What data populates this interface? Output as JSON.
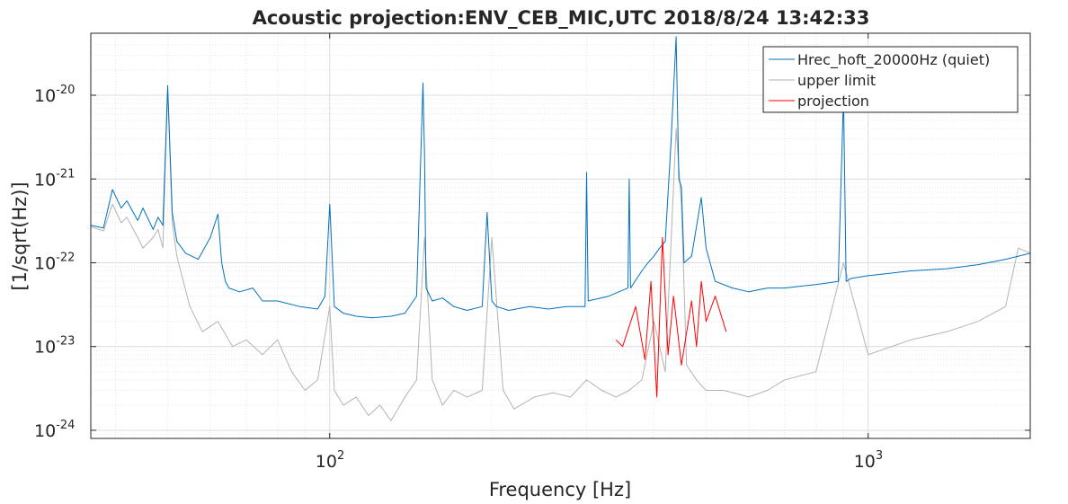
{
  "chart_data": {
    "type": "line",
    "title": "Acoustic projection:ENV_CEB_MIC,UTC 2018/8/24 13:42:33",
    "xlabel": "Frequency [Hz]",
    "ylabel": "[1/sqrt(Hz)]",
    "xscale": "log",
    "yscale": "log",
    "xlim": [
      36,
      2000
    ],
    "ylim": [
      8e-25,
      5.5e-20
    ],
    "grid": true,
    "minor_grid": true,
    "legend_position": "top-right",
    "x_ticks": [
      {
        "value": 100,
        "base": "10",
        "exp": "2"
      },
      {
        "value": 1000,
        "base": "10",
        "exp": "3"
      }
    ],
    "y_ticks": [
      {
        "value": 1e-24,
        "base": "10",
        "exp": "-24"
      },
      {
        "value": 1e-23,
        "base": "10",
        "exp": "-23"
      },
      {
        "value": 1e-22,
        "base": "10",
        "exp": "-22"
      },
      {
        "value": 1e-21,
        "base": "10",
        "exp": "-21"
      },
      {
        "value": 1e-20,
        "base": "10",
        "exp": "-20"
      }
    ],
    "series": [
      {
        "name": "Hrec_hoft_20000Hz (quiet)",
        "color": "#0072bd",
        "x": [
          36,
          38,
          39.5,
          41,
          42,
          44,
          45,
          47,
          48,
          49,
          50,
          51,
          52,
          54,
          57,
          60,
          62,
          63,
          64,
          65,
          68,
          72,
          75,
          80,
          88,
          95,
          98,
          100,
          102,
          106,
          112,
          120,
          130,
          138,
          145,
          149,
          150,
          151,
          155,
          162,
          170,
          180,
          192,
          196,
          200,
          204,
          215,
          235,
          255,
          275,
          298,
          300,
          302,
          330,
          358,
          360,
          362,
          380,
          390,
          400,
          410,
          420,
          430,
          440,
          445,
          450,
          455,
          470,
          490,
          500,
          520,
          560,
          600,
          650,
          700,
          800,
          880,
          900,
          910,
          930,
          1000,
          1100,
          1200,
          1400,
          1600,
          1800,
          1950,
          2000
        ],
        "y": [
          2.8e-22,
          2.6e-22,
          7.5e-22,
          4.5e-22,
          5.5e-22,
          3.2e-22,
          4.5e-22,
          2.5e-22,
          3.5e-22,
          2.8e-22,
          1.3e-20,
          4e-22,
          1.8e-22,
          1.3e-22,
          1.1e-22,
          2e-22,
          3.8e-22,
          1e-22,
          6e-23,
          5e-23,
          4.5e-23,
          5e-23,
          3.5e-23,
          3.5e-23,
          3e-23,
          2.8e-23,
          4e-23,
          5e-22,
          3e-23,
          2.5e-23,
          2.3e-23,
          2.2e-23,
          2.3e-23,
          2.5e-23,
          4e-23,
          1.4e-20,
          2e-21,
          5e-23,
          3.5e-23,
          3.8e-23,
          3e-23,
          2.7e-23,
          3e-23,
          4e-22,
          3.5e-23,
          3e-23,
          2.7e-23,
          3e-23,
          2.8e-23,
          3e-23,
          3e-23,
          1.2e-21,
          3.5e-23,
          4e-23,
          5e-23,
          1e-21,
          5e-23,
          8e-23,
          1e-22,
          1.2e-22,
          1.5e-22,
          1.8e-22,
          2.5e-21,
          5e-20,
          1e-21,
          8e-22,
          1e-22,
          1.2e-22,
          6e-22,
          1.5e-22,
          6e-23,
          5e-23,
          4.5e-23,
          5e-23,
          5e-23,
          5.5e-23,
          6e-23,
          1e-20,
          6e-23,
          6.5e-23,
          7e-23,
          7.5e-23,
          8e-23,
          8.5e-23,
          9.5e-23,
          1.1e-22,
          1.25e-22,
          1.3e-22
        ]
      },
      {
        "name": "upper limit",
        "color": "#b3b3b3",
        "x": [
          36,
          38,
          39.5,
          41,
          42,
          44,
          45,
          47,
          48,
          49,
          50,
          51,
          52,
          55,
          58,
          62,
          66,
          70,
          75,
          80,
          85,
          90,
          95,
          100,
          102,
          106,
          112,
          118,
          124,
          130,
          138,
          145,
          150,
          155,
          162,
          170,
          180,
          192,
          200,
          210,
          220,
          240,
          260,
          280,
          300,
          320,
          340,
          360,
          380,
          400,
          420,
          440,
          450,
          460,
          480,
          500,
          540,
          600,
          650,
          700,
          800,
          900,
          1000,
          1200,
          1400,
          1600,
          1800,
          1900,
          2000
        ],
        "y": [
          2.7e-22,
          2.4e-22,
          5e-22,
          3e-22,
          3.5e-22,
          2e-22,
          1.5e-22,
          2e-22,
          2.5e-22,
          1.5e-22,
          1.2e-20,
          3e-22,
          1.2e-22,
          3e-23,
          1.5e-23,
          2e-23,
          1e-23,
          1.2e-23,
          8e-24,
          1.2e-23,
          5e-24,
          3e-24,
          4e-24,
          3e-23,
          3e-24,
          2e-24,
          2.5e-24,
          1.5e-24,
          2e-24,
          1.3e-24,
          2.5e-24,
          4e-24,
          2e-22,
          4e-24,
          2e-24,
          3e-24,
          2.5e-24,
          3e-24,
          2e-22,
          3e-24,
          1.8e-24,
          2.5e-24,
          2.8e-24,
          2.5e-24,
          4e-24,
          3e-24,
          2.5e-24,
          3e-24,
          4e-24,
          2e-23,
          5e-24,
          4e-21,
          5e-22,
          6e-24,
          4e-24,
          3e-24,
          3e-24,
          2.5e-24,
          3e-24,
          4e-24,
          5e-24,
          1e-22,
          8e-24,
          1.2e-23,
          1.5e-23,
          2e-23,
          3e-23,
          1.5e-22,
          1.3e-22
        ]
      },
      {
        "name": "projection",
        "color": "#ff0000",
        "x": [
          340,
          350,
          370,
          385,
          395,
          405,
          415,
          425,
          435,
          450,
          470,
          480,
          490,
          500,
          520,
          545
        ],
        "y": [
          1.2e-23,
          1e-23,
          3e-23,
          7e-24,
          6e-23,
          2.5e-24,
          2e-22,
          8e-24,
          4e-23,
          6e-24,
          3.5e-23,
          1e-23,
          6e-23,
          2e-23,
          4e-23,
          1.5e-23
        ]
      }
    ]
  }
}
